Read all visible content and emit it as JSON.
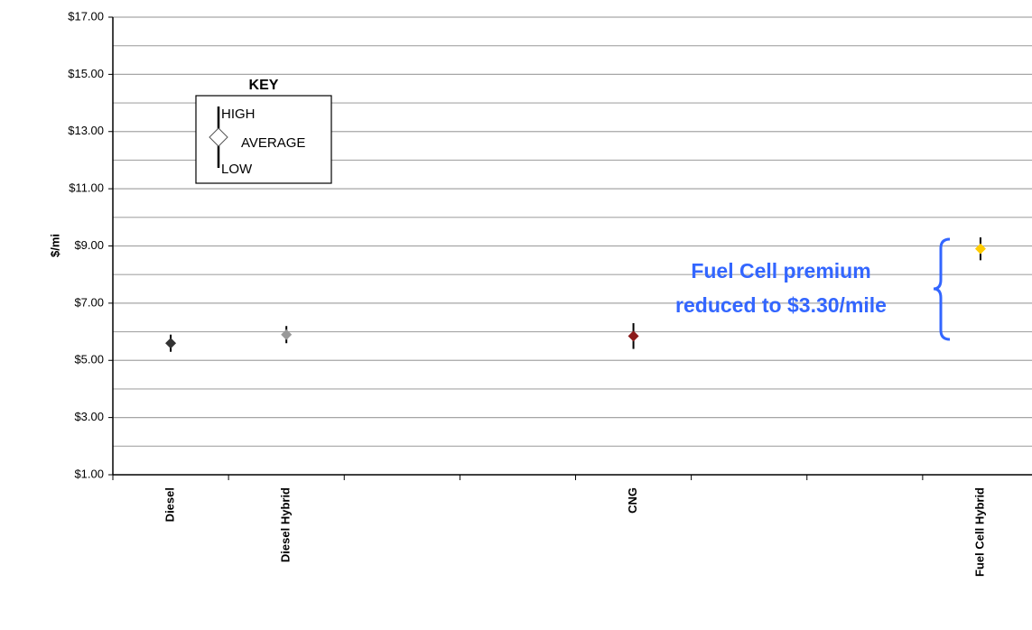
{
  "chart_data": {
    "type": "range",
    "y_label": "$/mi",
    "categories": [
      "Diesel",
      "Diesel Hybrid",
      null,
      null,
      "CNG",
      null,
      null,
      "Fuel Cell Hybrid"
    ],
    "series": [
      {
        "name": "AVERAGE",
        "values": [
          5.6,
          5.9,
          null,
          null,
          5.85,
          null,
          null,
          8.9
        ],
        "high": [
          5.9,
          6.2,
          null,
          null,
          6.3,
          null,
          null,
          9.3
        ],
        "low": [
          5.3,
          5.6,
          null,
          null,
          5.4,
          null,
          null,
          8.5
        ],
        "colors": [
          "#333333",
          "#999999",
          null,
          null,
          "#8b1a1a",
          null,
          null,
          "#ffcc00"
        ]
      }
    ],
    "ylim": [
      1,
      17
    ],
    "yticks": [
      {
        "value": 1,
        "label": "$1.00"
      },
      {
        "value": 3,
        "label": "$3.00"
      },
      {
        "value": 5,
        "label": "$5.00"
      },
      {
        "value": 7,
        "label": "$7.00"
      },
      {
        "value": 9,
        "label": "$9.00"
      },
      {
        "value": 11,
        "label": "$11.00"
      },
      {
        "value": 13,
        "label": "$13.00"
      },
      {
        "value": 15,
        "label": "$15.00"
      },
      {
        "value": 17,
        "label": "$17.00"
      }
    ],
    "minor_yticks": [
      2,
      4,
      6,
      8,
      10,
      12,
      14,
      16
    ],
    "grid": true,
    "key": {
      "title": "KEY",
      "high": "HIGH",
      "average": "AVERAGE",
      "low": "LOW"
    },
    "annotation": [
      "Fuel Cell premium",
      "reduced to $3.30/mile"
    ]
  }
}
